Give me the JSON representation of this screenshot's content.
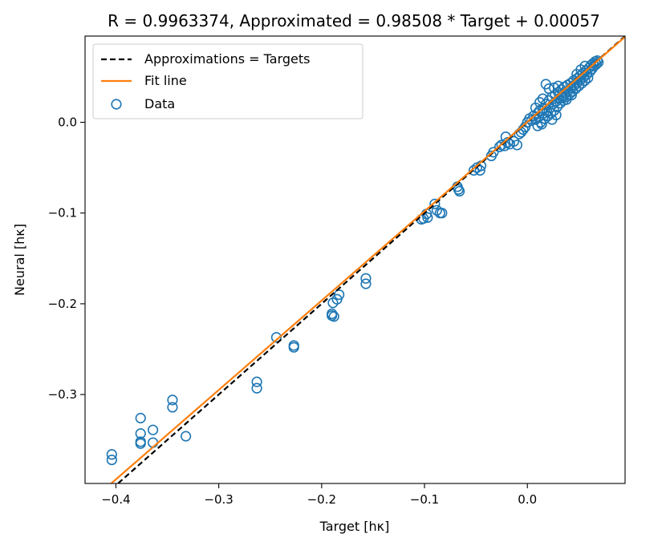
{
  "chart_data": {
    "type": "scatter",
    "title": "R = 0.9963374, Approximated = 0.98508 * Target + 0.00057",
    "xlabel": "Target [hκ]",
    "ylabel": "Neural [hκ]",
    "xlim": [
      -0.43,
      0.095
    ],
    "ylim": [
      -0.398,
      0.095
    ],
    "x_ticks": [
      -0.4,
      -0.3,
      -0.2,
      -0.1,
      0.0
    ],
    "x_tick_labels": [
      "−0.4",
      "−0.3",
      "−0.2",
      "−0.1",
      "0.0"
    ],
    "y_ticks": [
      -0.3,
      -0.2,
      -0.1,
      0.0
    ],
    "y_tick_labels": [
      "−0.3",
      "−0.2",
      "−0.1",
      "0.0"
    ],
    "grid": false,
    "legend_position": "top-left",
    "colors": {
      "data": "#1f77b4",
      "fit": "#ff7f0e",
      "identity": "#000000"
    },
    "lines": [
      {
        "name": "Approximations = Targets",
        "style": "dashed",
        "color": "#000000",
        "slope": 1.0,
        "intercept": 0.0
      },
      {
        "name": "Fit line",
        "style": "solid",
        "color": "#ff7f0e",
        "slope": 0.98508,
        "intercept": 0.00057
      }
    ],
    "series": [
      {
        "name": "Data",
        "marker": "open-circle",
        "color": "#1f77b4",
        "points": [
          [
            -0.404,
            -0.366
          ],
          [
            -0.404,
            -0.372
          ],
          [
            -0.376,
            -0.326
          ],
          [
            -0.376,
            -0.343
          ],
          [
            -0.376,
            -0.352
          ],
          [
            -0.376,
            -0.354
          ],
          [
            -0.364,
            -0.339
          ],
          [
            -0.364,
            -0.353
          ],
          [
            -0.345,
            -0.306
          ],
          [
            -0.345,
            -0.314
          ],
          [
            -0.332,
            -0.346
          ],
          [
            -0.263,
            -0.286
          ],
          [
            -0.263,
            -0.293
          ],
          [
            -0.244,
            -0.237
          ],
          [
            -0.227,
            -0.246
          ],
          [
            -0.227,
            -0.248
          ],
          [
            -0.19,
            -0.211
          ],
          [
            -0.19,
            -0.213
          ],
          [
            -0.188,
            -0.214
          ],
          [
            -0.189,
            -0.199
          ],
          [
            -0.185,
            -0.195
          ],
          [
            -0.183,
            -0.19
          ],
          [
            -0.157,
            -0.172
          ],
          [
            -0.157,
            -0.178
          ],
          [
            -0.103,
            -0.107
          ],
          [
            -0.101,
            -0.106
          ],
          [
            -0.098,
            -0.101
          ],
          [
            -0.097,
            -0.105
          ],
          [
            -0.09,
            -0.09
          ],
          [
            -0.088,
            -0.097
          ],
          [
            -0.085,
            -0.1
          ],
          [
            -0.083,
            -0.1
          ],
          [
            -0.068,
            -0.071
          ],
          [
            -0.067,
            -0.074
          ],
          [
            -0.066,
            -0.076
          ],
          [
            -0.052,
            -0.053
          ],
          [
            -0.049,
            -0.05
          ],
          [
            -0.046,
            -0.053
          ],
          [
            -0.045,
            -0.048
          ],
          [
            -0.035,
            -0.037
          ],
          [
            -0.033,
            -0.033
          ],
          [
            -0.027,
            -0.027
          ],
          [
            -0.025,
            -0.025
          ],
          [
            -0.022,
            -0.026
          ],
          [
            -0.021,
            -0.016
          ],
          [
            -0.019,
            -0.022
          ],
          [
            -0.017,
            -0.024
          ],
          [
            -0.013,
            -0.021
          ],
          [
            -0.01,
            -0.025
          ],
          [
            -0.008,
            -0.013
          ],
          [
            -0.006,
            -0.011
          ],
          [
            -0.004,
            -0.008
          ],
          [
            -0.002,
            -0.005
          ],
          [
            0.0,
            0.0
          ],
          [
            0.002,
            0.004
          ],
          [
            0.004,
            0.002
          ],
          [
            0.006,
            0.007
          ],
          [
            0.008,
            0.003
          ],
          [
            0.01,
            0.01
          ],
          [
            0.011,
            0.006
          ],
          [
            0.012,
            0.013
          ],
          [
            0.013,
            0.0
          ],
          [
            0.014,
            -0.002
          ],
          [
            0.015,
            0.015
          ],
          [
            0.016,
            0.01
          ],
          [
            0.017,
            0.004
          ],
          [
            0.018,
            0.02
          ],
          [
            0.019,
            0.012
          ],
          [
            0.02,
            0.007
          ],
          [
            0.021,
            0.024
          ],
          [
            0.022,
            0.016
          ],
          [
            0.023,
            0.01
          ],
          [
            0.024,
            0.028
          ],
          [
            0.025,
            0.02
          ],
          [
            0.026,
            0.013
          ],
          [
            0.027,
            0.03
          ],
          [
            0.028,
            0.023
          ],
          [
            0.029,
            0.017
          ],
          [
            0.03,
            0.033
          ],
          [
            0.031,
            0.026
          ],
          [
            0.032,
            0.021
          ],
          [
            0.033,
            0.036
          ],
          [
            0.034,
            0.029
          ],
          [
            0.035,
            0.024
          ],
          [
            0.036,
            0.039
          ],
          [
            0.037,
            0.032
          ],
          [
            0.038,
            0.028
          ],
          [
            0.039,
            0.041
          ],
          [
            0.04,
            0.035
          ],
          [
            0.041,
            0.031
          ],
          [
            0.042,
            0.043
          ],
          [
            0.043,
            0.038
          ],
          [
            0.044,
            0.034
          ],
          [
            0.045,
            0.046
          ],
          [
            0.046,
            0.041
          ],
          [
            0.047,
            0.037
          ],
          [
            0.048,
            0.048
          ],
          [
            0.049,
            0.044
          ],
          [
            0.05,
            0.04
          ],
          [
            0.051,
            0.051
          ],
          [
            0.052,
            0.047
          ],
          [
            0.053,
            0.043
          ],
          [
            0.054,
            0.054
          ],
          [
            0.055,
            0.05
          ],
          [
            0.056,
            0.046
          ],
          [
            0.057,
            0.057
          ],
          [
            0.058,
            0.053
          ],
          [
            0.059,
            0.049
          ],
          [
            0.06,
            0.06
          ],
          [
            0.061,
            0.056
          ],
          [
            0.062,
            0.063
          ],
          [
            0.063,
            0.059
          ],
          [
            0.064,
            0.065
          ],
          [
            0.065,
            0.062
          ],
          [
            0.066,
            0.067
          ],
          [
            0.067,
            0.064
          ],
          [
            0.068,
            0.068
          ],
          [
            0.069,
            0.066
          ],
          [
            0.018,
            0.042
          ],
          [
            0.021,
            0.037
          ],
          [
            0.026,
            0.038
          ],
          [
            0.03,
            0.04
          ],
          [
            0.034,
            0.027
          ],
          [
            0.038,
            0.025
          ],
          [
            0.043,
            0.03
          ],
          [
            0.048,
            0.053
          ],
          [
            0.052,
            0.058
          ],
          [
            0.056,
            0.062
          ],
          [
            0.015,
            0.026
          ],
          [
            0.012,
            0.022
          ],
          [
            0.008,
            0.016
          ],
          [
            0.024,
            0.003
          ],
          [
            0.028,
            0.008
          ],
          [
            0.01,
            -0.004
          ]
        ]
      }
    ]
  }
}
